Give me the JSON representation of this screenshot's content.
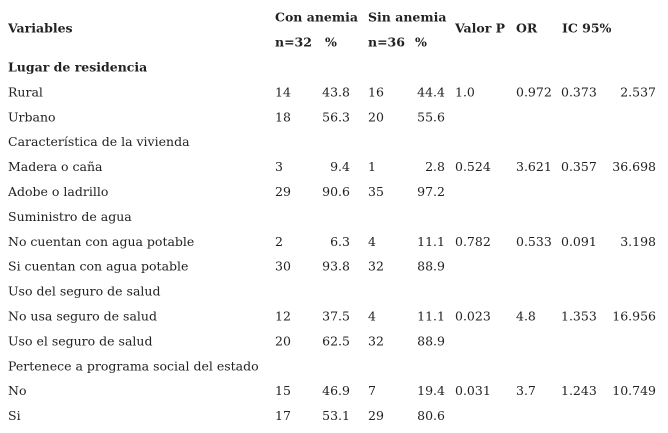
{
  "header": {
    "variables": "Variables",
    "con_anemia": "Con anemia",
    "sin_anemia": "Sin anemia",
    "valor_p": "Valor P",
    "or": "OR",
    "ic": "IC 95%",
    "n_con": "n=32",
    "pct_con": "%",
    "n_sin": "n=36",
    "pct_sin": "%"
  },
  "sections": [
    {
      "title": "Lugar de residencia",
      "rows": [
        [
          "Rural",
          "14",
          "43.8",
          "16",
          "44.4",
          "1.0",
          "0.972",
          "0.373",
          "2.537"
        ],
        [
          "Urbano",
          "18",
          "56.3",
          "20",
          "55.6"
        ]
      ]
    },
    {
      "title": "Característica de la vivienda",
      "rows": [
        [
          "Madera o caña",
          "3",
          "9.4",
          "1",
          "2.8",
          "0.524",
          "3.621",
          "0.357",
          "36.698"
        ],
        [
          "Adobe o ladrillo",
          "29",
          "90.6",
          "35",
          "97.2"
        ]
      ]
    },
    {
      "title": "Suministro de agua",
      "rows": [
        [
          "No cuentan con agua potable",
          "2",
          "6.3",
          "4",
          "11.1",
          "0.782",
          "0.533",
          "0.091",
          "3.198"
        ],
        [
          "Si cuentan con agua potable",
          "30",
          "93.8",
          "32",
          "88.9"
        ]
      ]
    },
    {
      "title": "Uso del seguro de salud",
      "rows": [
        [
          "No usa seguro de salud",
          "12",
          "37.5",
          "4",
          "11.1",
          "0.023",
          "4.8",
          "1.353",
          "16.956"
        ],
        [
          "Uso el seguro de salud",
          "20",
          "62.5",
          "32",
          "88.9"
        ]
      ]
    },
    {
      "title": "Pertenece a programa social del estado",
      "rows": [
        [
          "No",
          "15",
          "46.9",
          "7",
          "19.4",
          "0.031",
          "3.7",
          "1.243",
          "10.749"
        ],
        [
          "Si",
          "17",
          "53.1",
          "29",
          "80.6"
        ]
      ]
    }
  ]
}
